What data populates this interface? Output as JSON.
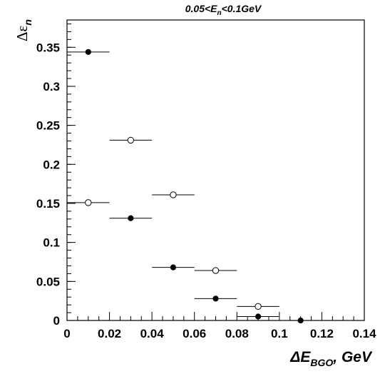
{
  "chart_data": {
    "type": "scatter",
    "title": {
      "pre": "0.05<E",
      "sub": "n",
      "post": "<0.1GeV"
    },
    "xlabel": {
      "pre": "ΔE",
      "sub": "BGO",
      "post": ", GeV"
    },
    "ylabel": {
      "pre": "Δε",
      "sub": "n"
    },
    "xlim": [
      0,
      0.14
    ],
    "ylim": [
      0,
      0.385
    ],
    "xticks": [
      "0",
      "0.02",
      "0.04",
      "0.06",
      "0.08",
      "0.1",
      "0.12",
      "0.14"
    ],
    "yticks": [
      "0",
      "0.05",
      "0.1",
      "0.15",
      "0.2",
      "0.25",
      "0.3",
      "0.35"
    ],
    "grid": false,
    "series": [
      {
        "marker": "filled-circle",
        "color": "#000000",
        "points": [
          {
            "x": 0.01,
            "y": 0.344,
            "xerr": 0.01
          },
          {
            "x": 0.03,
            "y": 0.131,
            "xerr": 0.01
          },
          {
            "x": 0.05,
            "y": 0.068,
            "xerr": 0.01
          },
          {
            "x": 0.07,
            "y": 0.028,
            "xerr": 0.01
          },
          {
            "x": 0.09,
            "y": 0.005,
            "xerr": 0.01
          },
          {
            "x": 0.11,
            "y": 0.0,
            "xerr": 0.01
          }
        ]
      },
      {
        "marker": "open-circle",
        "color": "#000000",
        "points": [
          {
            "x": 0.01,
            "y": 0.151,
            "xerr": 0.01
          },
          {
            "x": 0.03,
            "y": 0.231,
            "xerr": 0.01
          },
          {
            "x": 0.05,
            "y": 0.161,
            "xerr": 0.01
          },
          {
            "x": 0.07,
            "y": 0.064,
            "xerr": 0.01
          },
          {
            "x": 0.09,
            "y": 0.018,
            "xerr": 0.01
          }
        ]
      }
    ]
  }
}
